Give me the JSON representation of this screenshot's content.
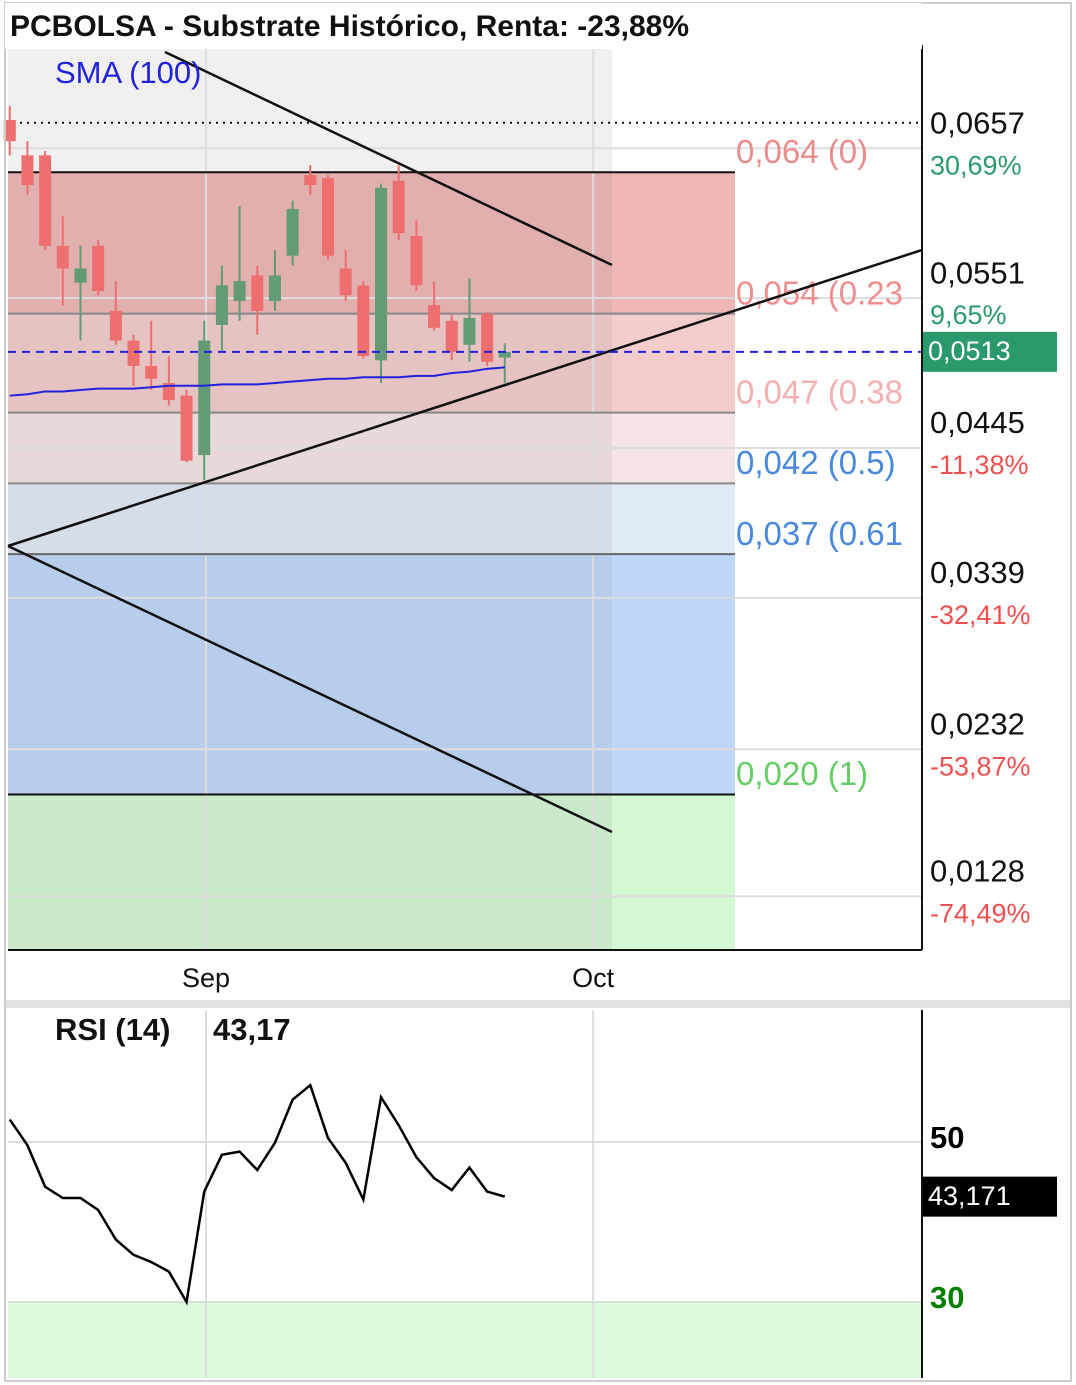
{
  "chart_data": [
    {
      "type": "candlestick",
      "title": "PCBOLSA - Substrate Histórico, Renta: -23,88%",
      "xlim": [
        -0.1,
        51.6
      ],
      "xticks": [
        {
          "value": 11.1,
          "label": "Sep"
        },
        {
          "value": 33,
          "label": "Oct"
        }
      ],
      "ylim": [
        0.009,
        0.073
      ],
      "yticks": [
        {
          "value": 0.0657,
          "label": "0,0657"
        },
        {
          "value": 0.0551,
          "label": "0,0551"
        },
        {
          "value": 0.0445,
          "label": "0,0445"
        },
        {
          "value": 0.0339,
          "label": "0,0339"
        },
        {
          "value": 0.0232,
          "label": "0,0232"
        },
        {
          "value": 0.0128,
          "label": "0,0128"
        }
      ],
      "ytick_changes": [
        "30,69%",
        "9,65%",
        "-11,38%",
        "-32,41%",
        "-53,87%",
        "-74,49%"
      ],
      "grid": true,
      "up_color": "#629b76",
      "down_color": "#ee6f6f",
      "open": [
        0.0677,
        0.0652,
        0.0652,
        0.0588,
        0.0562,
        0.0588,
        0.0542,
        0.0521,
        0.0503,
        0.0491,
        0.0482,
        0.044,
        0.0532,
        0.0549,
        0.0567,
        0.0549,
        0.0581,
        0.0638,
        0.0636,
        0.0572,
        0.056,
        0.0507,
        0.0634,
        0.0595,
        0.0546,
        0.0535,
        0.0518,
        0.054,
        0.0509
      ],
      "high": [
        0.0687,
        0.0662,
        0.0655,
        0.0609,
        0.0588,
        0.0592,
        0.0563,
        0.0525,
        0.0535,
        0.051,
        0.0486,
        0.0535,
        0.0574,
        0.0616,
        0.0574,
        0.0585,
        0.062,
        0.0645,
        0.0638,
        0.0585,
        0.0563,
        0.0632,
        0.0645,
        0.0606,
        0.0563,
        0.0539,
        0.0565,
        0.0541,
        0.0519
      ],
      "low": [
        0.0652,
        0.0624,
        0.0585,
        0.0546,
        0.0521,
        0.0553,
        0.0518,
        0.0489,
        0.0486,
        0.0475,
        0.0435,
        0.0422,
        0.0514,
        0.0535,
        0.0525,
        0.0542,
        0.0574,
        0.0624,
        0.0578,
        0.0549,
        0.0508,
        0.0491,
        0.0592,
        0.0556,
        0.0528,
        0.0507,
        0.0506,
        0.0503,
        0.0491
      ],
      "close": [
        0.0662,
        0.0631,
        0.0588,
        0.0572,
        0.0572,
        0.0556,
        0.0521,
        0.0503,
        0.0494,
        0.0479,
        0.0436,
        0.0521,
        0.056,
        0.0563,
        0.0542,
        0.0567,
        0.0614,
        0.0631,
        0.0581,
        0.0553,
        0.051,
        0.0629,
        0.0597,
        0.056,
        0.053,
        0.0513,
        0.0537,
        0.0506,
        0.0513
      ],
      "sma": {
        "name": "SMA (100)",
        "color": "#2222dd",
        "values": [
          0.0482,
          0.0483,
          0.0485,
          0.0485,
          0.0486,
          0.0487,
          0.0487,
          0.0487,
          0.0488,
          0.0489,
          0.0489,
          0.0489,
          0.049,
          0.049,
          0.049,
          0.0491,
          0.0492,
          0.0493,
          0.0494,
          0.0494,
          0.0495,
          0.0495,
          0.0495,
          0.0496,
          0.0496,
          0.0498,
          0.0499,
          0.0501,
          0.0502
        ]
      },
      "last_price": {
        "value": 0.0513,
        "label": "0,0513",
        "color": "#2a9a6c"
      },
      "high_line": 0.0675,
      "fib_levels": [
        {
          "value": 0.064,
          "label": "0,064 (0)",
          "color": "#e88c8c",
          "line": "#111111",
          "zone": "#efb6b6"
        },
        {
          "value": 0.054,
          "label": "0,054 (0.23",
          "color": "#ee8e8e",
          "line": "#888888",
          "zone": "#f3cccc"
        },
        {
          "value": 0.047,
          "label": "0,047 (0.38",
          "color": "#f4b0b0",
          "line": "#888888",
          "zone": "#f7e4e4"
        },
        {
          "value": 0.042,
          "label": "0,042 (0.5)",
          "color": "#4a89dc",
          "line": "#888888",
          "zone": "#e0eaf7"
        },
        {
          "value": 0.037,
          "label": "0,037 (0.61",
          "color": "#4a89dc",
          "line": "#666666",
          "zone": "#c0d7fa"
        },
        {
          "value": 0.02,
          "label": "0,020 (1)",
          "color": "#66cc66",
          "line": "#111111",
          "zone": "#d4f7d4"
        }
      ]
    },
    {
      "type": "line",
      "xlim": [
        -0.1,
        51.6
      ],
      "ylim": [
        20.5,
        66.5
      ],
      "yticks": [
        50,
        30
      ],
      "ytick_colors": [
        "#000000",
        "#008000"
      ],
      "oversold": 30,
      "oversold_color": "#dcfadc",
      "series": [
        {
          "name": "RSI (14)",
          "color": "#000000",
          "values": [
            52.8,
            49.6,
            44.4,
            43.0,
            43.0,
            41.5,
            37.8,
            35.9,
            35.0,
            33.8,
            30.0,
            43.8,
            48.4,
            48.8,
            46.5,
            49.9,
            55.3,
            57.1,
            50.5,
            47.4,
            42.8,
            55.6,
            52.1,
            48.1,
            45.5,
            44.0,
            46.8,
            43.8,
            43.171
          ]
        }
      ],
      "current": {
        "value": 43.171,
        "label": "43,171",
        "short_label": "43,17"
      }
    }
  ]
}
